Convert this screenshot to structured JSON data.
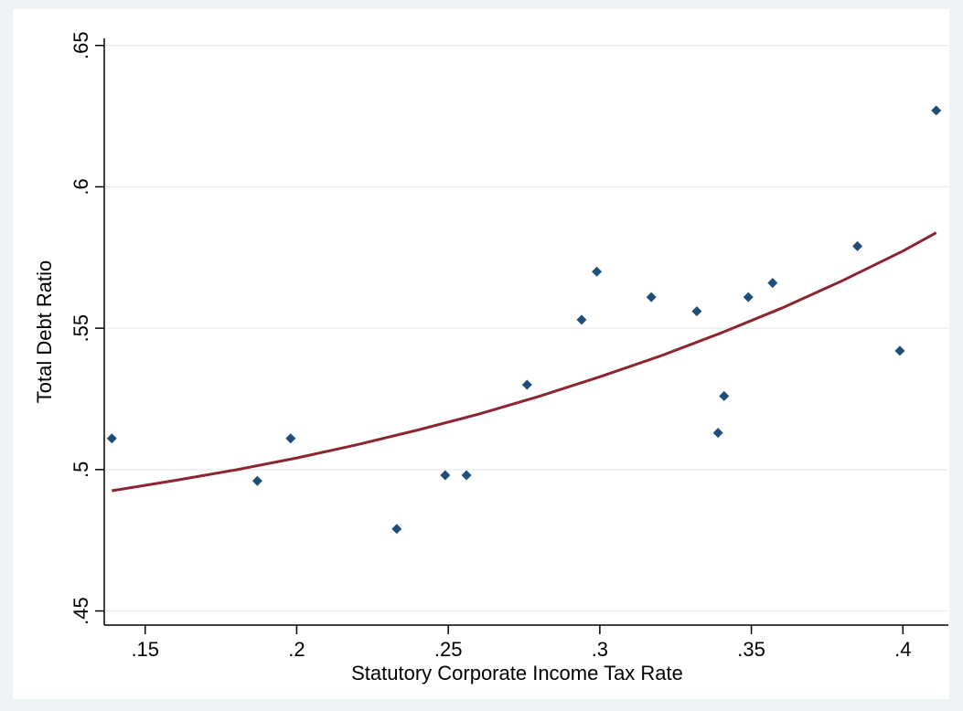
{
  "chart_data": {
    "type": "scatter",
    "xlabel": "Statutory Corporate Income Tax Rate",
    "ylabel": "Total Debt Ratio",
    "xlim": [
      0.1365,
      0.415
    ],
    "ylim": [
      0.445,
      0.6525
    ],
    "x_ticks": [
      0.15,
      0.2,
      0.25,
      0.3,
      0.35,
      0.4
    ],
    "x_tick_labels": [
      ".15",
      ".2",
      ".25",
      ".3",
      ".35",
      ".4"
    ],
    "y_ticks": [
      0.45,
      0.5,
      0.55,
      0.6,
      0.65
    ],
    "y_tick_labels": [
      ".45",
      ".5",
      ".55",
      ".6",
      ".65"
    ],
    "grid": "horizontal",
    "colors": {
      "points": "#1f4e79",
      "fit": "#8b2530",
      "grid": "#e8eef2",
      "background": "#eef3f6"
    },
    "series": [
      {
        "type": "scatter",
        "x": [
          0.139,
          0.187,
          0.198,
          0.233,
          0.249,
          0.256,
          0.276,
          0.294,
          0.299,
          0.317,
          0.332,
          0.339,
          0.341,
          0.349,
          0.357,
          0.385,
          0.399,
          0.411
        ],
        "y": [
          0.511,
          0.496,
          0.511,
          0.479,
          0.498,
          0.498,
          0.53,
          0.553,
          0.57,
          0.561,
          0.556,
          0.513,
          0.526,
          0.561,
          0.566,
          0.579,
          0.542,
          0.627
        ]
      },
      {
        "type": "line",
        "x": [
          0.139,
          0.16,
          0.18,
          0.2,
          0.22,
          0.24,
          0.26,
          0.28,
          0.3,
          0.32,
          0.34,
          0.36,
          0.38,
          0.4,
          0.411
        ],
        "y": [
          0.4925,
          0.4962,
          0.4999,
          0.5041,
          0.5088,
          0.514,
          0.5196,
          0.5259,
          0.5328,
          0.5402,
          0.5483,
          0.5571,
          0.5668,
          0.5773,
          0.5838
        ]
      }
    ]
  }
}
